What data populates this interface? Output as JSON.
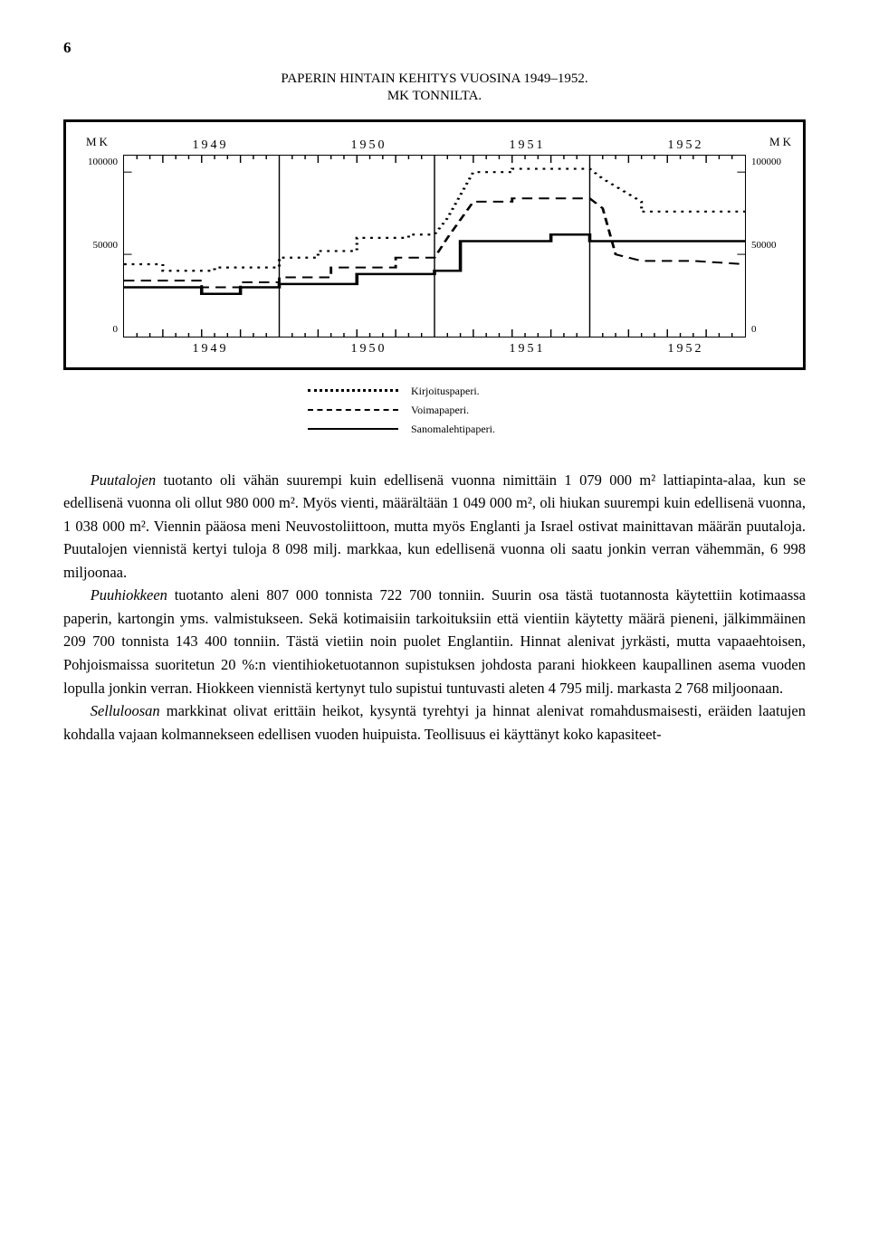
{
  "page_number": "6",
  "chart": {
    "type": "line",
    "title_line1": "PAPERIN HINTAIN KEHITYS VUOSINA 1949–1952.",
    "title_line2": "MK TONNILTA.",
    "axis_label": "MK",
    "years": [
      "1949",
      "1950",
      "1951",
      "1952"
    ],
    "ylim": [
      0,
      110000
    ],
    "yticks": [
      100000,
      50000,
      0
    ],
    "ytick_labels": [
      "100000",
      "50000",
      "0"
    ],
    "ytick_labels_right": [
      "100000",
      "50000",
      "0"
    ],
    "x_domain": [
      0,
      48
    ],
    "background_color": "#ffffff",
    "grid_color": "#000000",
    "series": {
      "kirjoituspaperi": {
        "label": "Kirjoituspaperi.",
        "style": "dotted",
        "points": [
          [
            0,
            44000
          ],
          [
            3,
            44000
          ],
          [
            3,
            40000
          ],
          [
            7,
            40000
          ],
          [
            7,
            42000
          ],
          [
            12,
            42000
          ],
          [
            12,
            48000
          ],
          [
            15,
            48000
          ],
          [
            15,
            52000
          ],
          [
            18,
            52000
          ],
          [
            18,
            60000
          ],
          [
            22,
            60000
          ],
          [
            22,
            62000
          ],
          [
            24,
            62000
          ],
          [
            25,
            72000
          ],
          [
            27,
            100000
          ],
          [
            30,
            100000
          ],
          [
            30,
            102000
          ],
          [
            36,
            102000
          ],
          [
            37,
            96000
          ],
          [
            40,
            82000
          ],
          [
            40,
            76000
          ],
          [
            44,
            76000
          ],
          [
            48,
            76000
          ]
        ]
      },
      "voimapaperi": {
        "label": "Voimapaperi.",
        "style": "dashed",
        "points": [
          [
            0,
            34000
          ],
          [
            6,
            34000
          ],
          [
            6,
            30000
          ],
          [
            9,
            30000
          ],
          [
            9,
            33000
          ],
          [
            12,
            33000
          ],
          [
            12,
            36000
          ],
          [
            16,
            36000
          ],
          [
            16,
            42000
          ],
          [
            21,
            42000
          ],
          [
            21,
            48000
          ],
          [
            24,
            48000
          ],
          [
            25,
            60000
          ],
          [
            27,
            82000
          ],
          [
            30,
            82000
          ],
          [
            30,
            84000
          ],
          [
            36,
            84000
          ],
          [
            37,
            78000
          ],
          [
            38,
            50000
          ],
          [
            40,
            46000
          ],
          [
            44,
            46000
          ],
          [
            48,
            44000
          ]
        ]
      },
      "sanomalehtipaperi": {
        "label": "Sanomalehtipaperi.",
        "style": "solid",
        "points": [
          [
            0,
            30000
          ],
          [
            6,
            30000
          ],
          [
            6,
            26000
          ],
          [
            9,
            26000
          ],
          [
            9,
            30000
          ],
          [
            12,
            30000
          ],
          [
            12,
            32000
          ],
          [
            18,
            32000
          ],
          [
            18,
            38000
          ],
          [
            24,
            38000
          ],
          [
            24,
            40000
          ],
          [
            26,
            40000
          ],
          [
            26,
            58000
          ],
          [
            33,
            58000
          ],
          [
            33,
            62000
          ],
          [
            36,
            62000
          ],
          [
            36,
            58000
          ],
          [
            48,
            58000
          ]
        ]
      }
    }
  },
  "body": {
    "p1": "Puutalojen tuotanto oli vähän suurempi kuin edellisenä vuonna nimittäin 1 079 000 m² lattiapinta-alaa, kun se edellisenä vuonna oli ollut 980 000 m². Myös vienti, määrältään 1 049 000 m², oli hiukan suurempi kuin edellisenä vuonna, 1 038 000 m². Viennin pääosa meni Neuvostoliittoon, mutta myös Englanti ja Israel ostivat mainittavan määrän puutaloja. Puutalojen viennistä kertyi tuloja 8 098 milj. markkaa, kun edellisenä vuonna oli saatu jonkin verran vähemmän, 6 998 miljoonaa.",
    "p1_lead": "Puutalojen",
    "p2": "Puuhiokkeen tuotanto aleni 807 000 tonnista 722 700 tonniin. Suurin osa tästä tuotannosta käytettiin kotimaassa paperin, kartongin yms. valmistukseen. Sekä kotimaisiin tarkoituksiin että vientiin käytetty määrä pieneni, jälkimmäinen 209 700 tonnista 143 400 tonniin. Tästä vietiin noin puolet Englantiin. Hinnat alenivat jyrkästi, mutta vapaaehtoisen, Pohjoismaissa suoritetun 20 %:n vientihioketuotannon supistuksen johdosta parani hiokkeen kaupallinen asema vuoden lopulla jonkin verran. Hiokkeen viennistä kertynyt tulo supistui tuntuvasti aleten 4 795 milj. markasta 2 768 miljoonaan.",
    "p2_lead": "Puuhiokkeen",
    "p3": "Selluloosan markkinat olivat erittäin heikot, kysyntä tyrehtyi ja hinnat alenivat romahdusmaisesti, eräiden laatujen kohdalla vajaan kolmannekseen edellisen vuoden huipuista. Teollisuus ei käyttänyt koko kapasiteet-",
    "p3_lead": "Selluloosan"
  }
}
